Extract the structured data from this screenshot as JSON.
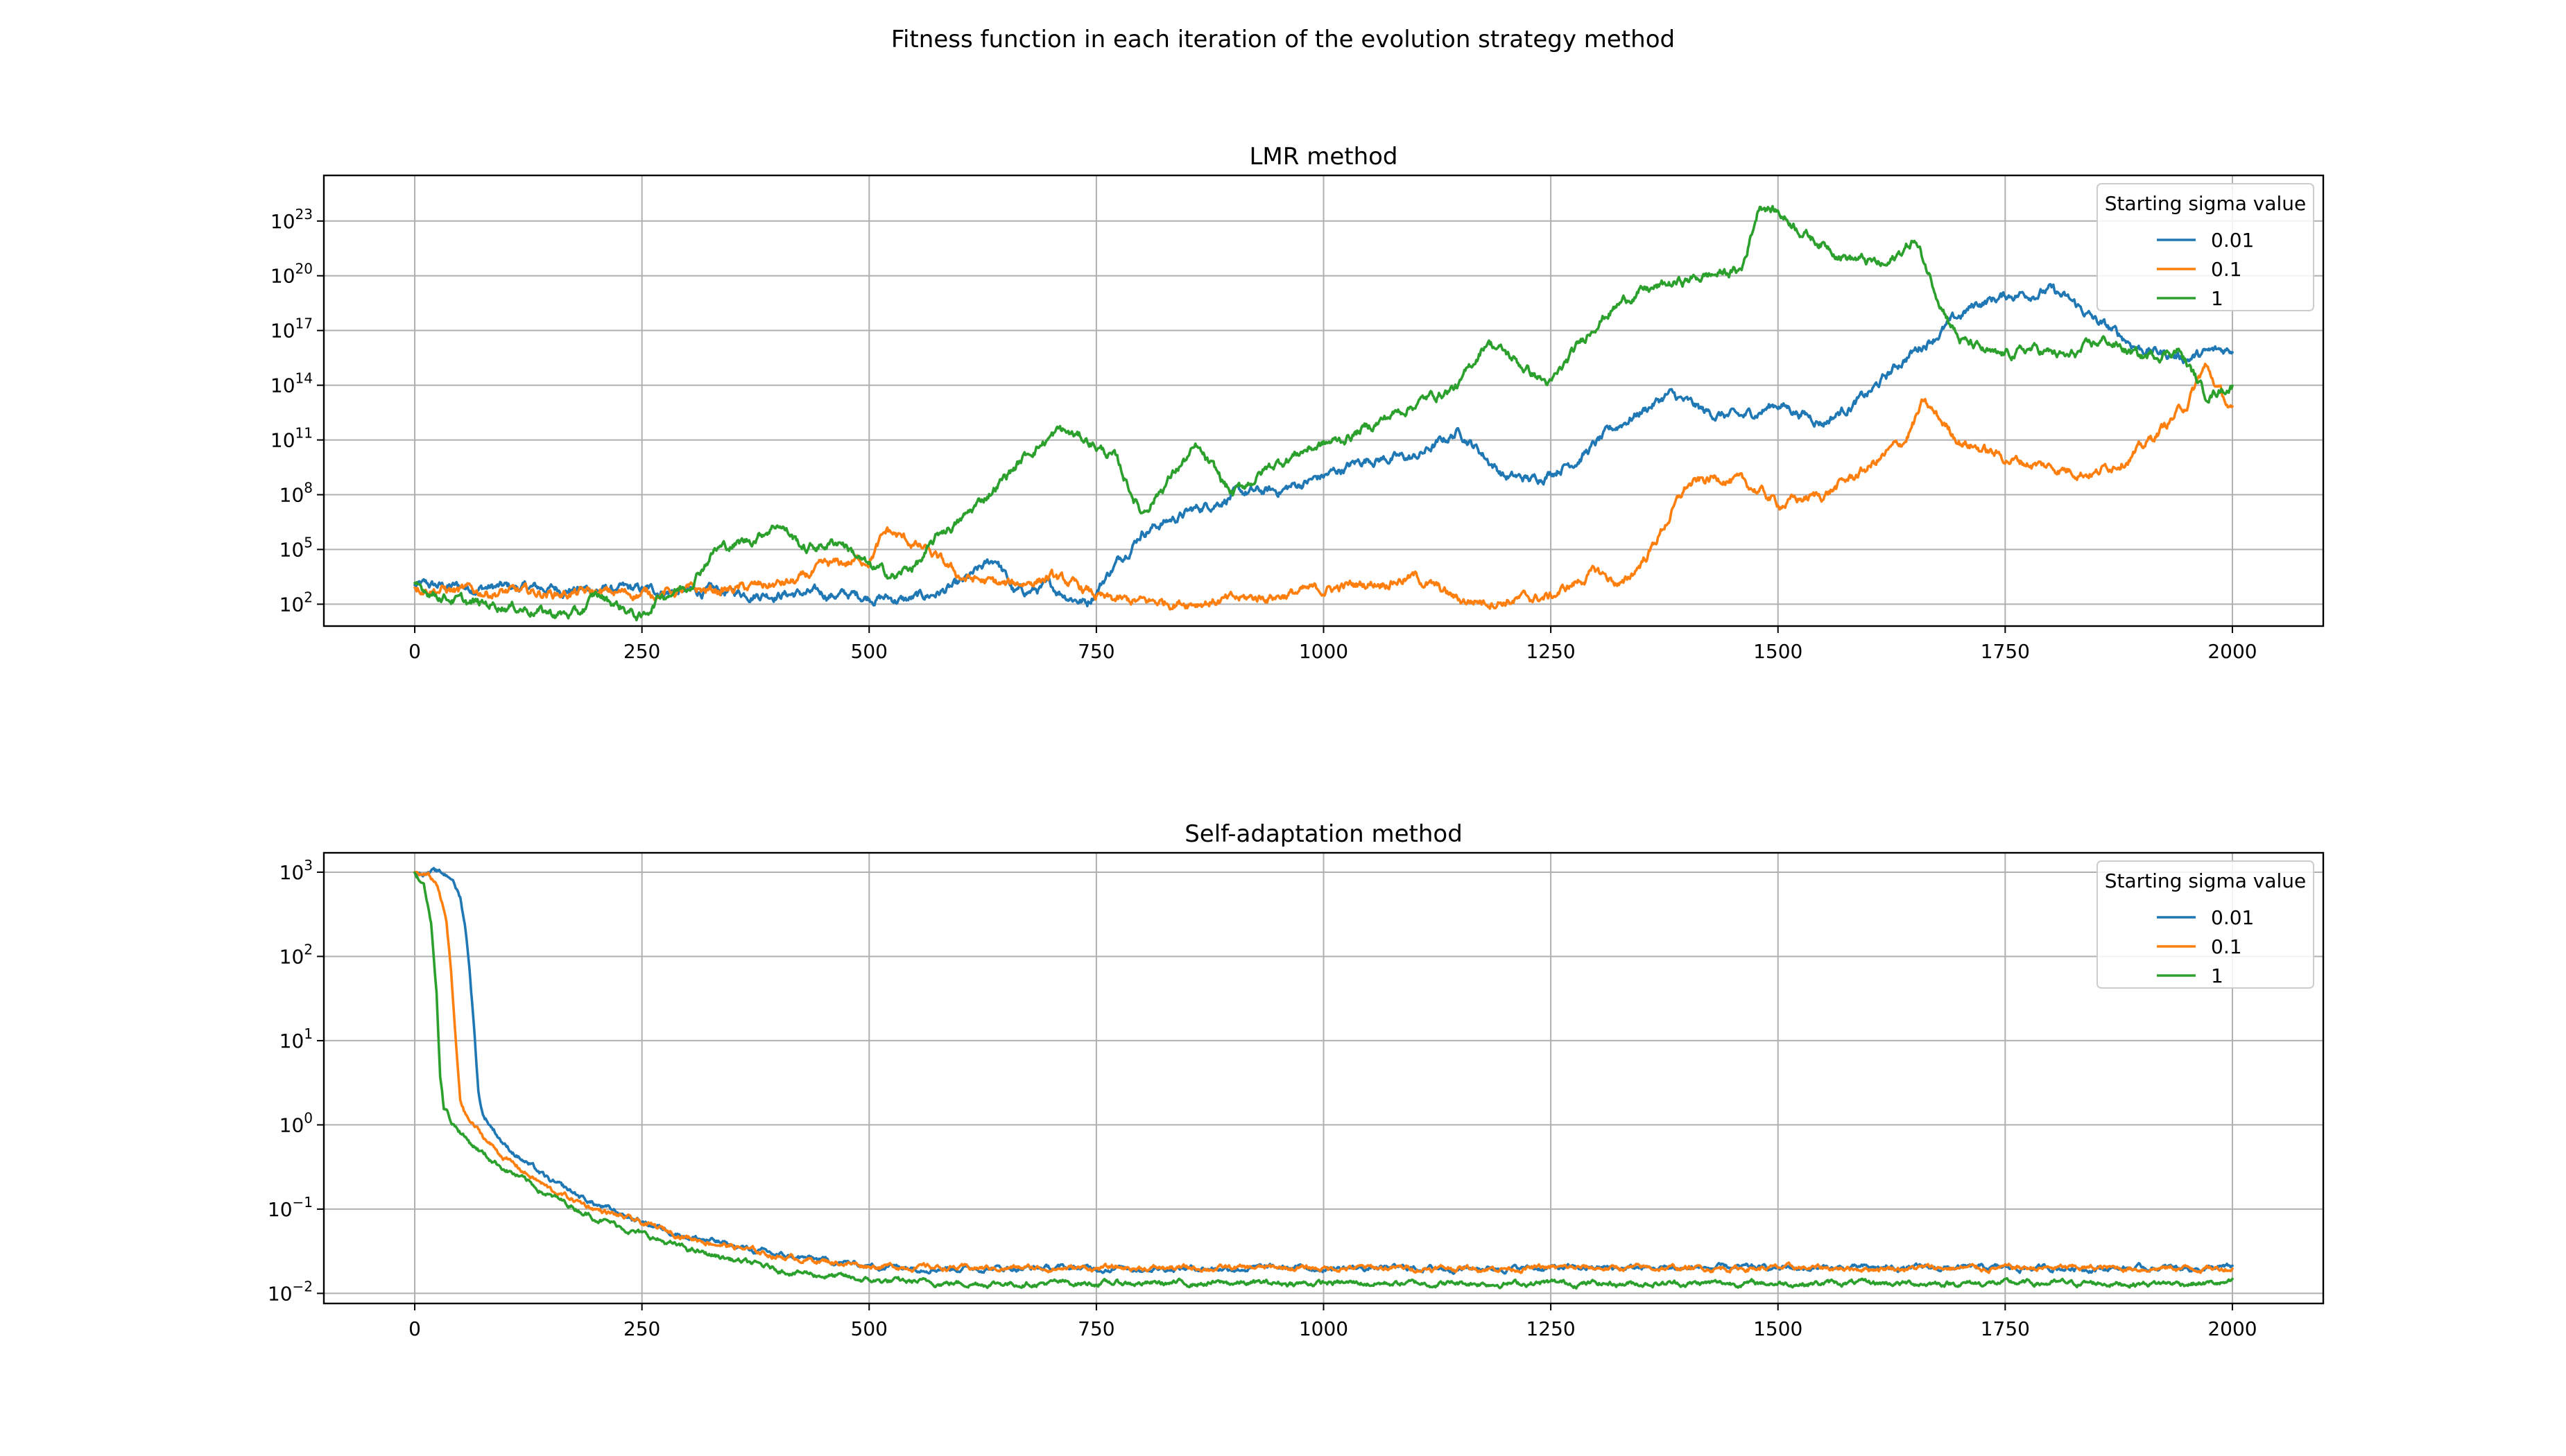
{
  "figure": {
    "suptitle": "Fitness function in each iteration of the evolution strategy method"
  },
  "chart_data": [
    {
      "type": "line",
      "title": "LMR method",
      "xlabel": "",
      "ylabel": "",
      "yscale": "log",
      "xlim": [
        -100,
        2100
      ],
      "ylim_log10": [
        0.8,
        25.5
      ],
      "xticks": [
        0,
        250,
        500,
        750,
        1000,
        1250,
        1500,
        1750,
        2000
      ],
      "xtick_labels": [
        "0",
        "250",
        "500",
        "750",
        "1000",
        "1250",
        "1500",
        "1750",
        "2000"
      ],
      "yticks_log10": [
        2,
        5,
        8,
        11,
        14,
        17,
        20,
        23
      ],
      "ytick_base": "10",
      "ytick_exponents": [
        "2",
        "5",
        "8",
        "11",
        "14",
        "17",
        "20",
        "23"
      ],
      "grid": true,
      "legend": {
        "title": "Starting sigma value",
        "placement": "upper right"
      },
      "noise_amplitude_log10": 0.35,
      "series": [
        {
          "name": "0.01",
          "color": "#1f77b4",
          "x": [
            0,
            100,
            200,
            300,
            400,
            480,
            510,
            540,
            560,
            600,
            640,
            660,
            700,
            740,
            760,
            800,
            850,
            900,
            950,
            1000,
            1050,
            1100,
            1150,
            1200,
            1230,
            1280,
            1330,
            1380,
            1420,
            1460,
            1500,
            1550,
            1600,
            1640,
            1680,
            1720,
            1760,
            1800,
            1830,
            1850,
            1900,
            1950,
            2000
          ],
          "y_log10": [
            3.0,
            2.9,
            2.8,
            2.7,
            2.6,
            2.5,
            2.4,
            2.2,
            2.4,
            3.0,
            4.5,
            2.6,
            2.9,
            2.1,
            3.5,
            6.0,
            7.0,
            8.0,
            8.2,
            9.0,
            10.0,
            10.0,
            11.5,
            9.0,
            8.8,
            10.0,
            12.0,
            13.5,
            12.5,
            12.2,
            13.0,
            12.0,
            13.5,
            15.5,
            17.0,
            18.5,
            19.0,
            19.2,
            18.3,
            17.5,
            16.0,
            15.5,
            16.0
          ]
        },
        {
          "name": "0.1",
          "color": "#ff7f0e",
          "x": [
            0,
            50,
            150,
            250,
            300,
            350,
            420,
            450,
            500,
            520,
            560,
            600,
            650,
            700,
            740,
            760,
            800,
            900,
            1000,
            1100,
            1150,
            1200,
            1250,
            1300,
            1330,
            1360,
            1400,
            1440,
            1480,
            1500,
            1550,
            1600,
            1640,
            1660,
            1700,
            1750,
            1800,
            1850,
            1900,
            1950,
            1970,
            2000
          ],
          "y_log10": [
            3.0,
            2.7,
            2.6,
            2.6,
            2.7,
            2.8,
            3.2,
            4.0,
            4.5,
            6.0,
            5.0,
            3.5,
            3.0,
            3.5,
            2.7,
            2.2,
            2.1,
            2.2,
            2.8,
            3.5,
            2.2,
            2.2,
            2.4,
            3.8,
            3.0,
            5.0,
            8.5,
            9.0,
            8.2,
            7.5,
            8.0,
            9.5,
            11.0,
            13.0,
            11.0,
            10.0,
            9.5,
            9.2,
            10.5,
            13.0,
            15.0,
            12.5
          ]
        },
        {
          "name": "1",
          "color": "#2ca02c",
          "x": [
            0,
            30,
            60,
            90,
            120,
            150,
            180,
            200,
            230,
            250,
            270,
            300,
            330,
            370,
            400,
            430,
            470,
            500,
            530,
            560,
            580,
            600,
            640,
            680,
            710,
            740,
            770,
            800,
            840,
            860,
            900,
            940,
            980,
            1020,
            1060,
            1100,
            1150,
            1180,
            1220,
            1250,
            1300,
            1340,
            1380,
            1420,
            1460,
            1480,
            1500,
            1540,
            1580,
            1620,
            1650,
            1680,
            1700,
            1740,
            1780,
            1820,
            1860,
            1900,
            1940,
            1970,
            2000
          ],
          "y_log10": [
            3.0,
            2.5,
            2.0,
            2.0,
            1.8,
            1.5,
            1.4,
            2.5,
            1.8,
            1.2,
            2.5,
            3.0,
            5.0,
            5.5,
            6.5,
            5.0,
            5.5,
            4.0,
            3.5,
            4.5,
            6.0,
            6.5,
            8.5,
            10.5,
            11.5,
            11.0,
            10.0,
            7.0,
            9.5,
            10.5,
            8.0,
            9.5,
            10.5,
            11.0,
            12.0,
            13.0,
            14.0,
            16.5,
            15.0,
            14.0,
            17.5,
            19.0,
            19.5,
            20.0,
            20.3,
            24.0,
            23.5,
            22.0,
            21.0,
            20.5,
            22.0,
            18.5,
            16.5,
            15.5,
            16.0,
            15.5,
            16.5,
            15.5,
            16.0,
            13.5,
            14.0
          ]
        }
      ]
    },
    {
      "type": "line",
      "title": "Self-adaptation method",
      "xlabel": "",
      "ylabel": "",
      "yscale": "log",
      "xlim": [
        -100,
        2100
      ],
      "ylim_log10": [
        -2.12,
        3.23
      ],
      "xticks": [
        0,
        250,
        500,
        750,
        1000,
        1250,
        1500,
        1750,
        2000
      ],
      "xtick_labels": [
        "0",
        "250",
        "500",
        "750",
        "1000",
        "1250",
        "1500",
        "1750",
        "2000"
      ],
      "yticks_log10": [
        -2,
        -1,
        0,
        1,
        2,
        3
      ],
      "ytick_base": "10",
      "ytick_exponents": [
        "−2",
        "−1",
        "0",
        "1",
        "2",
        "3"
      ],
      "grid": true,
      "legend": {
        "title": "Starting sigma value",
        "placement": "upper right"
      },
      "noise_amplitude_log10": 0.04,
      "series": [
        {
          "name": "0.01",
          "color": "#1f77b4",
          "x": [
            0,
            20,
            40,
            50,
            55,
            60,
            65,
            70,
            75,
            80,
            100,
            150,
            200,
            250,
            300,
            400,
            500,
            600,
            700,
            800,
            1000,
            1500,
            2000
          ],
          "y_log10": [
            3.0,
            3.0,
            2.95,
            2.7,
            2.4,
            1.9,
            1.2,
            0.4,
            0.12,
            0.05,
            -0.25,
            -0.68,
            -0.95,
            -1.15,
            -1.32,
            -1.55,
            -1.67,
            -1.7,
            -1.7,
            -1.7,
            -1.7,
            -1.7,
            -1.7
          ]
        },
        {
          "name": "0.1",
          "color": "#ff7f0e",
          "x": [
            0,
            15,
            25,
            35,
            40,
            45,
            50,
            55,
            60,
            80,
            100,
            150,
            200,
            250,
            300,
            400,
            500,
            600,
            700,
            800,
            1000,
            1500,
            2000
          ],
          "y_log10": [
            3.0,
            2.95,
            2.85,
            2.4,
            1.8,
            1.0,
            0.3,
            0.15,
            0.05,
            -0.2,
            -0.4,
            -0.78,
            -1.0,
            -1.17,
            -1.33,
            -1.56,
            -1.67,
            -1.7,
            -1.7,
            -1.7,
            -1.7,
            -1.7,
            -1.7
          ]
        },
        {
          "name": "1",
          "color": "#2ca02c",
          "x": [
            0,
            10,
            18,
            24,
            28,
            32,
            36,
            40,
            60,
            80,
            100,
            150,
            200,
            250,
            300,
            400,
            500,
            600,
            700,
            800,
            1000,
            1500,
            2000
          ],
          "y_log10": [
            3.0,
            2.85,
            2.4,
            1.6,
            0.6,
            0.2,
            0.15,
            0.05,
            -0.2,
            -0.38,
            -0.52,
            -0.85,
            -1.1,
            -1.3,
            -1.48,
            -1.72,
            -1.85,
            -1.88,
            -1.88,
            -1.88,
            -1.88,
            -1.88,
            -1.88
          ]
        }
      ]
    }
  ]
}
